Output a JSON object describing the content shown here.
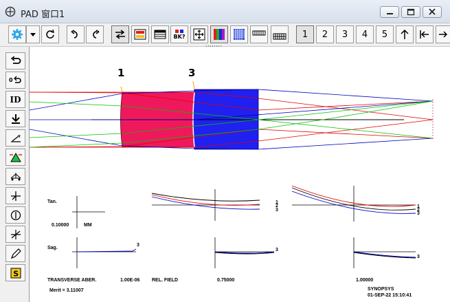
{
  "window": {
    "title": "PAD 窗口1"
  },
  "toolbar": {
    "bk_label": "BK?",
    "num_buttons": [
      "1",
      "2",
      "3",
      "4",
      "5"
    ]
  },
  "sidebar": {
    "id_label": "ID"
  },
  "lens": {
    "surface_labels": [
      "1",
      "3"
    ],
    "element_colors": {
      "crown": "#f0185c",
      "flint": "#2020f0"
    },
    "ray_colors": {
      "axial": "#0000c0",
      "marginal": "#e00000",
      "chief": "#00c000"
    }
  },
  "aberration": {
    "tan_label": "Tan.",
    "sag_label": "Sag.",
    "scale_value": "0.10000",
    "scale_unit": "MM",
    "curve_labels_tan": [
      "1",
      "2",
      "3"
    ],
    "curve_labels_sag": [
      "3"
    ],
    "footer": {
      "aber_type": "TRANSVERSE ABER.",
      "wave": "1.00E-06",
      "rel_field_label": "REL. FIELD",
      "field_mid": "0.75000",
      "field_full": "1.00000",
      "merit": "Merit = 3.11007",
      "brand": "SYNOPSYS",
      "date": "01-SEP-22  15:10:41"
    }
  }
}
